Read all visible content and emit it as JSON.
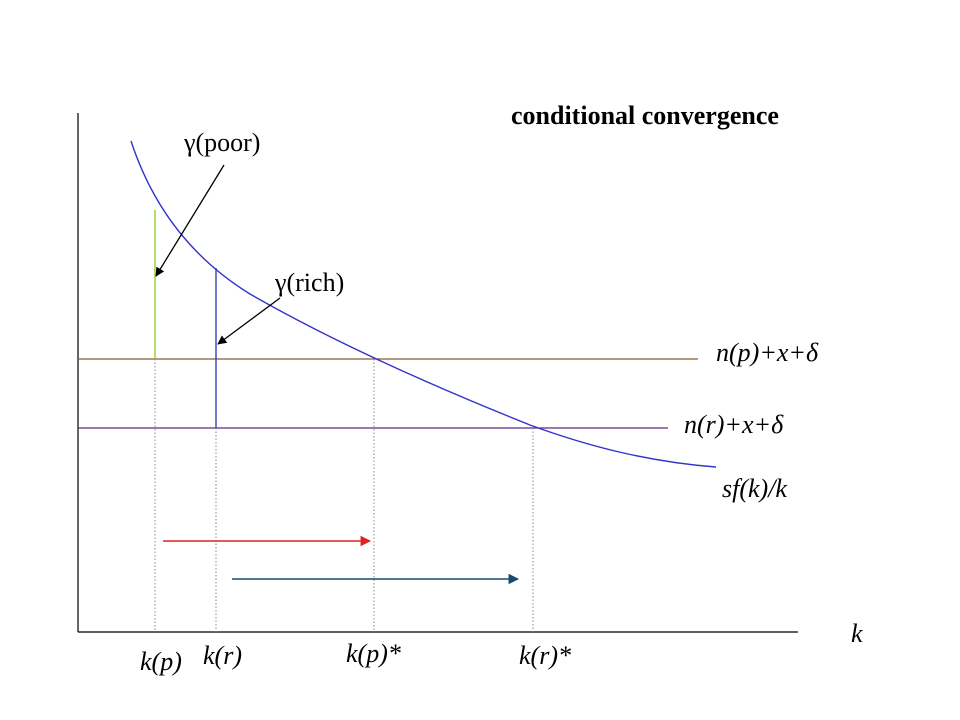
{
  "title": "conditional convergence",
  "curve_label": "sf(k)/k",
  "line_labels": {
    "poor": "n(p)+x+δ",
    "rich": "n(r)+x+δ"
  },
  "growth_labels": {
    "poor": "γ(poor)",
    "rich": "γ(rich)"
  },
  "axis": {
    "x_label": "k"
  },
  "k_labels": {
    "k_poor": "k(p)",
    "k_rich": "k(r)",
    "k_poor_star": "k(p)*",
    "k_rich_star": "k(r)*"
  },
  "colors": {
    "curve": "#3333cc",
    "line_poor": "#8b5a2b",
    "line_rich": "#5b2a86",
    "gap_poor": "#99cc33",
    "gap_rich": "#3344aa",
    "arrow_poor": "#dd2222",
    "arrow_rich": "#1a4a6a"
  }
}
